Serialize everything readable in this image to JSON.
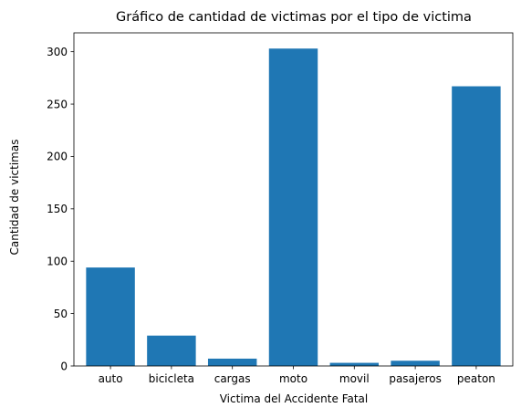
{
  "chart_data": {
    "type": "bar",
    "title": "Gráfico de cantidad de victimas por el tipo de victima",
    "xlabel": "Victima del Accidente Fatal",
    "ylabel": "Cantidad de victimas",
    "categories": [
      "auto",
      "bicicleta",
      "cargas",
      "moto",
      "movil",
      "pasajeros",
      "peaton"
    ],
    "values": [
      94,
      29,
      7,
      303,
      3,
      5,
      267
    ],
    "ylim": [
      0,
      318
    ],
    "yticks": [
      0,
      50,
      100,
      150,
      200,
      250,
      300
    ],
    "grid": false,
    "bar_color": "#1f77b4"
  }
}
